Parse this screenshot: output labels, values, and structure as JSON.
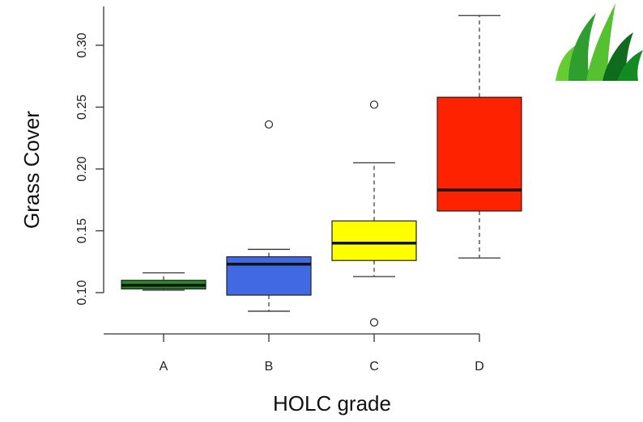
{
  "chart_data": {
    "type": "boxplot",
    "xlabel": "HOLC grade",
    "ylabel": "Grass Cover",
    "ylim": [
      0.065,
      0.335
    ],
    "yticks": [
      "0.10",
      "0.15",
      "0.20",
      "0.25",
      "0.30"
    ],
    "ytick_values": [
      0.1,
      0.15,
      0.2,
      0.25,
      0.3
    ],
    "categories": [
      "A",
      "B",
      "C",
      "D"
    ],
    "boxes": [
      {
        "category": "A",
        "color": "#228B22",
        "whisker_low": 0.102,
        "q1": 0.103,
        "median": 0.106,
        "q3": 0.11,
        "whisker_high": 0.116,
        "outliers": []
      },
      {
        "category": "B",
        "color": "#4169E1",
        "whisker_low": 0.085,
        "q1": 0.098,
        "median": 0.123,
        "q3": 0.129,
        "whisker_high": 0.135,
        "outliers": [
          0.236
        ]
      },
      {
        "category": "C",
        "color": "#FFFF00",
        "whisker_low": 0.113,
        "q1": 0.126,
        "median": 0.14,
        "q3": 0.158,
        "whisker_high": 0.205,
        "outliers": [
          0.252,
          0.076
        ]
      },
      {
        "category": "D",
        "color": "#FF2200",
        "whisker_low": 0.128,
        "q1": 0.166,
        "median": 0.183,
        "q3": 0.258,
        "whisker_high": 0.324,
        "outliers": []
      }
    ]
  },
  "decoration": {
    "icon": "grass-icon",
    "colors": [
      "#66CC33",
      "#2E9E2E",
      "#0F6B1E"
    ]
  }
}
